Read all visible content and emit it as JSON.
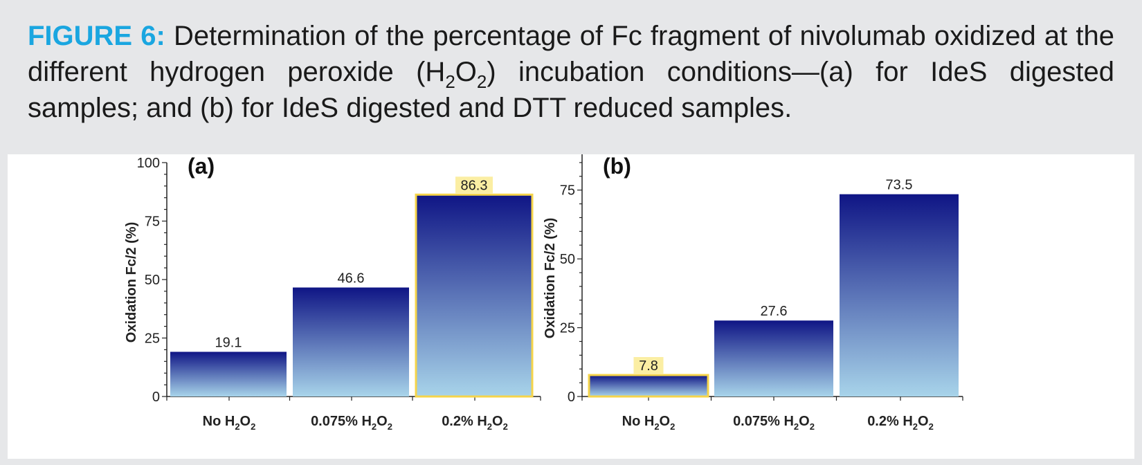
{
  "caption": {
    "label": "FIGURE 6:",
    "text_part1": " Determination of the percentage of Fc fragment of nivolumab oxidized at the different hydrogen peroxide (H",
    "sub1": "2",
    "text_part2": "O",
    "sub2": "2",
    "text_part3": ") incubation conditions—(a) for IdeS digested samples; and (b) for IdeS digested and DTT reduced samples."
  },
  "colors": {
    "bar_top": "#0f1585",
    "bar_bottom": "#a8d4ea",
    "highlight": "#f5d44a",
    "highlight_fill": "#fbeea3",
    "axis": "#222222"
  },
  "chart_data": [
    {
      "type": "bar",
      "panel_label": "(a)",
      "ylabel": "Oxidation Fc/2 (%)",
      "xlabel": "",
      "ylim": [
        0,
        100
      ],
      "yticks": [
        0,
        25,
        50,
        75,
        100
      ],
      "categories": [
        "No H2O2",
        "0.075% H2O2",
        "0.2% H2O2"
      ],
      "category_labels": [
        {
          "pre": "No H",
          "mid": "O",
          "s1": "2",
          "s2": "2"
        },
        {
          "pre": "0.075% H",
          "mid": "O",
          "s1": "2",
          "s2": "2"
        },
        {
          "pre": "0.2% H",
          "mid": "O",
          "s1": "2",
          "s2": "2"
        }
      ],
      "values": [
        19.1,
        46.6,
        86.3
      ],
      "value_labels": [
        "19.1",
        "46.6",
        "86.3"
      ],
      "highlighted": [
        false,
        false,
        true
      ]
    },
    {
      "type": "bar",
      "panel_label": "(b)",
      "ylabel": "Oxidation Fc/2 (%)",
      "xlabel": "",
      "ylim": [
        0,
        88
      ],
      "yticks": [
        0,
        25,
        50,
        75
      ],
      "categories": [
        "No H2O2",
        "0.075% H2O2",
        "0.2% H2O2"
      ],
      "category_labels": [
        {
          "pre": "No H",
          "mid": "O",
          "s1": "2",
          "s2": "2"
        },
        {
          "pre": "0.075% H",
          "mid": "O",
          "s1": "2",
          "s2": "2"
        },
        {
          "pre": "0.2% H",
          "mid": "O",
          "s1": "2",
          "s2": "2"
        }
      ],
      "values": [
        7.8,
        27.6,
        73.5
      ],
      "value_labels": [
        "7.8",
        "27.6",
        "73.5"
      ],
      "highlighted": [
        true,
        false,
        false
      ]
    }
  ]
}
